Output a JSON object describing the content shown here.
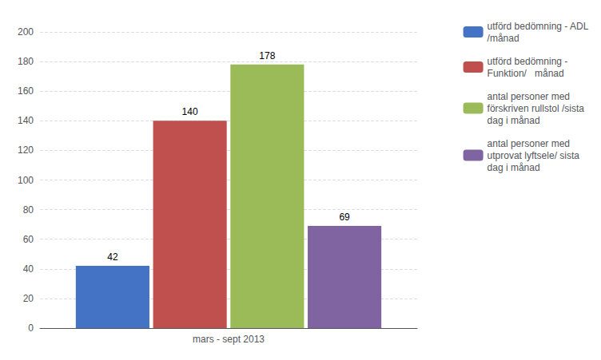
{
  "chart_data": {
    "type": "bar",
    "categories": [
      "mars - sept 2013"
    ],
    "series": [
      {
        "name": "utförd bedömning - ADL\n/månad",
        "color": "#4472C4",
        "values": [
          42
        ]
      },
      {
        "name": "utförd bedömning -\nFunktion/   månad",
        "color": "#C0504D",
        "values": [
          140
        ]
      },
      {
        "name": "antal personer med\nförskriven rullstol /sista\ndag i månad",
        "color": "#9BBB59",
        "values": [
          178
        ]
      },
      {
        "name": "antal personer med\nutprovat lyftsele/ sista\ndag i månad",
        "color": "#8064A2",
        "values": [
          69
        ]
      }
    ],
    "ylim": [
      0,
      200
    ],
    "yticks": [
      0,
      20,
      40,
      60,
      80,
      100,
      120,
      140,
      160,
      180,
      200
    ],
    "grid": true,
    "legend": "upper right",
    "data_labels": true
  }
}
